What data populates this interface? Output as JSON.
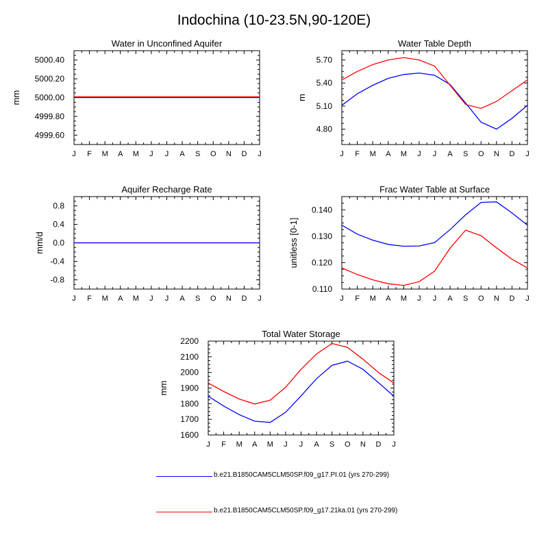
{
  "figure": {
    "title": "Indochina (10-23.5N,90-120E)"
  },
  "months": [
    "J",
    "F",
    "M",
    "A",
    "M",
    "J",
    "J",
    "A",
    "S",
    "O",
    "N",
    "D",
    "J"
  ],
  "series_meta": [
    {
      "name": "b.e21.B1850CAM5CLM50SP.f09_g17.PI.01 (yrs 270-299)",
      "color": "#0000ff"
    },
    {
      "name": "b.e21.B1850CAM5CLM50SP.f09_g17.21ka.01 (yrs 270-299)",
      "color": "#ff0000"
    }
  ],
  "chart_data": [
    {
      "id": "aquifer",
      "type": "line",
      "title": "Water in Unconfined Aquifer",
      "xlabel": "",
      "ylabel": "mm",
      "ylim": [
        4999.5,
        5000.5
      ],
      "yticks": [
        4999.6,
        4999.8,
        5000.0,
        5000.2,
        5000.4
      ],
      "ytick_labels": [
        "4999.60",
        "4999.80",
        "5000.00",
        "5000.20",
        "5000.40"
      ],
      "series": [
        {
          "name": "PI",
          "values": [
            5000.0,
            5000.0,
            5000.0,
            5000.0,
            5000.0,
            5000.0,
            5000.0,
            5000.0,
            5000.0,
            5000.0,
            5000.0,
            5000.0,
            5000.0
          ]
        },
        {
          "name": "21ka",
          "values": [
            5000.01,
            5000.01,
            5000.01,
            5000.01,
            5000.01,
            5000.01,
            5000.01,
            5000.01,
            5000.01,
            5000.01,
            5000.01,
            5000.01,
            5000.01
          ]
        }
      ]
    },
    {
      "id": "wtd",
      "type": "line",
      "title": "Water Table Depth",
      "xlabel": "",
      "ylabel": "m",
      "ylim": [
        4.6,
        5.82
      ],
      "yticks": [
        4.8,
        5.1,
        5.4,
        5.7
      ],
      "ytick_labels": [
        "4.80",
        "5.10",
        "5.40",
        "5.70"
      ],
      "series": [
        {
          "name": "PI",
          "values": [
            5.11,
            5.26,
            5.37,
            5.46,
            5.51,
            5.53,
            5.5,
            5.38,
            5.14,
            4.89,
            4.8,
            4.94,
            5.11
          ]
        },
        {
          "name": "21ka",
          "values": [
            5.44,
            5.55,
            5.64,
            5.7,
            5.73,
            5.7,
            5.62,
            5.37,
            5.12,
            5.07,
            5.16,
            5.3,
            5.44
          ]
        }
      ]
    },
    {
      "id": "recharge",
      "type": "line",
      "title": "Aquifer Recharge Rate",
      "xlabel": "",
      "ylabel": "mm/d",
      "ylim": [
        -1.0,
        1.0
      ],
      "yticks": [
        -0.8,
        -0.4,
        0.0,
        0.4,
        0.8
      ],
      "ytick_labels": [
        "-0.8",
        "-0.4",
        "0.0",
        "0.4",
        "0.8"
      ],
      "series": [
        {
          "name": "PI",
          "values": [
            0,
            0,
            0,
            0,
            0,
            0,
            0,
            0,
            0,
            0,
            0,
            0,
            0
          ]
        },
        {
          "name": "21ka",
          "values": [
            0,
            0,
            0,
            0,
            0,
            0,
            0,
            0,
            0,
            0,
            0,
            0,
            0
          ]
        }
      ]
    },
    {
      "id": "fwt",
      "type": "line",
      "title": "Frac Water Table at Surface",
      "xlabel": "",
      "ylabel": "unitless [0-1]",
      "ylim": [
        0.11,
        0.145
      ],
      "yticks": [
        0.11,
        0.12,
        0.13,
        0.14
      ],
      "ytick_labels": [
        "0.110",
        "0.120",
        "0.130",
        "0.140"
      ],
      "series": [
        {
          "name": "PI",
          "values": [
            0.1342,
            0.1308,
            0.1285,
            0.1269,
            0.1262,
            0.1263,
            0.1276,
            0.1325,
            0.1381,
            0.1428,
            0.143,
            0.1388,
            0.1342
          ]
        },
        {
          "name": "21ka",
          "values": [
            0.118,
            0.1155,
            0.1135,
            0.112,
            0.1114,
            0.1128,
            0.1168,
            0.1255,
            0.1323,
            0.1302,
            0.1256,
            0.1213,
            0.118
          ]
        }
      ]
    },
    {
      "id": "tws",
      "type": "line",
      "title": "Total Water Storage",
      "xlabel": "",
      "ylabel": "mm",
      "ylim": [
        1600,
        2200
      ],
      "yticks": [
        1600,
        1700,
        1800,
        1900,
        2000,
        2100,
        2200
      ],
      "ytick_labels": [
        "1600",
        "1700",
        "1800",
        "1900",
        "2000",
        "2100",
        "2200"
      ],
      "series": [
        {
          "name": "PI",
          "values": [
            1848,
            1785,
            1730,
            1688,
            1680,
            1745,
            1850,
            1960,
            2045,
            2072,
            2020,
            1935,
            1848
          ]
        },
        {
          "name": "21ka",
          "values": [
            1932,
            1878,
            1830,
            1798,
            1822,
            1905,
            2020,
            2118,
            2185,
            2160,
            2085,
            2000,
            1932
          ]
        }
      ]
    }
  ]
}
